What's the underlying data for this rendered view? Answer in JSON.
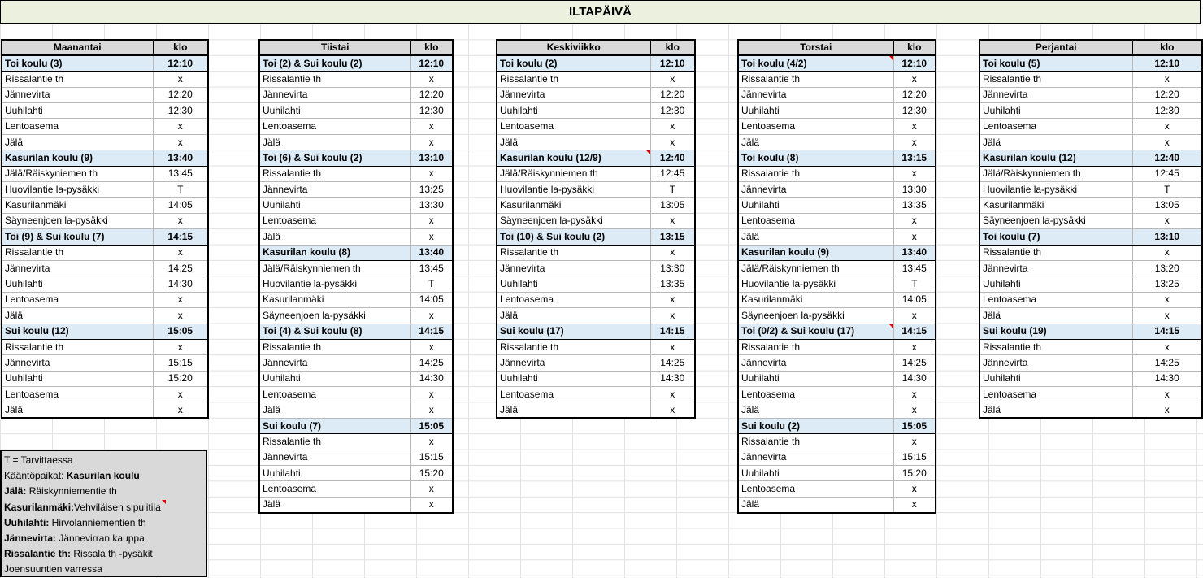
{
  "title": "ILTAPÄIVÄ",
  "header_time": "klo",
  "days": [
    {
      "name": "Maanantai",
      "blocks": [
        {
          "school": "Toi koulu (3)",
          "time": "12:10",
          "stops": [
            [
              "Rissalantie th",
              "x"
            ],
            [
              "Jännevirta",
              "12:20"
            ],
            [
              "Uuhilahti",
              "12:30"
            ],
            [
              "Lentoasema",
              "x"
            ],
            [
              "Jälä",
              "x"
            ]
          ]
        },
        {
          "school": "Kasurilan koulu (9)",
          "time": "13:40",
          "stops": [
            [
              "Jälä/Räiskyniemen th",
              "13:45"
            ],
            [
              "Huovilantie la-pysäkki",
              "T"
            ],
            [
              "Kasurilanmäki",
              "14:05"
            ],
            [
              "Säyneenjoen la-pysäkki",
              "x"
            ]
          ]
        },
        {
          "school": "Toi (9) & Sui koulu (7)",
          "time": "14:15",
          "stops": [
            [
              "Rissalantie th",
              "x"
            ],
            [
              "Jännevirta",
              "14:25"
            ],
            [
              "Uuhilahti",
              "14:30"
            ],
            [
              "Lentoasema",
              "x"
            ],
            [
              "Jälä",
              "x"
            ]
          ]
        },
        {
          "school": "Sui koulu (12)",
          "time": "15:05",
          "stops": [
            [
              "Rissalantie th",
              "x"
            ],
            [
              "Jännevirta",
              "15:15"
            ],
            [
              "Uuhilahti",
              "15:20"
            ],
            [
              "Lentoasema",
              "x"
            ],
            [
              "Jälä",
              "x"
            ]
          ]
        }
      ]
    },
    {
      "name": "Tiistai",
      "blocks": [
        {
          "school": "Toi (2) & Sui koulu (2)",
          "time": "12:10",
          "stops": [
            [
              "Rissalantie th",
              "x"
            ],
            [
              "Jännevirta",
              "12:20"
            ],
            [
              "Uuhilahti",
              "12:30"
            ],
            [
              "Lentoasema",
              "x"
            ],
            [
              "Jälä",
              "x"
            ]
          ]
        },
        {
          "school": "Toi (6) & Sui koulu (2)",
          "time": "13:10",
          "stops": [
            [
              "Rissalantie th",
              "x"
            ],
            [
              "Jännevirta",
              "13:25"
            ],
            [
              "Uuhilahti",
              "13:30"
            ],
            [
              "Lentoasema",
              "x"
            ],
            [
              "Jälä",
              "x"
            ]
          ]
        },
        {
          "school": "Kasurilan koulu (8)",
          "time": "13:40",
          "stops": [
            [
              "Jälä/Räiskynniemen th",
              "13:45"
            ],
            [
              "Huovilantie la-pysäkki",
              "T"
            ],
            [
              "Kasurilanmäki",
              "14:05"
            ],
            [
              "Säyneenjoen la-pysäkki",
              "x"
            ]
          ]
        },
        {
          "school": "Toi (4) & Sui koulu (8)",
          "time": "14:15",
          "stops": [
            [
              "Rissalantie th",
              "x"
            ],
            [
              "Jännevirta",
              "14:25"
            ],
            [
              "Uuhilahti",
              "14:30"
            ],
            [
              "Lentoasema",
              "x"
            ],
            [
              "Jälä",
              "x"
            ]
          ]
        },
        {
          "school": "Sui koulu (7)",
          "time": "15:05",
          "stops": [
            [
              "Rissalantie th",
              "x"
            ],
            [
              "Jännevirta",
              "15:15"
            ],
            [
              "Uuhilahti",
              "15:20"
            ],
            [
              "Lentoasema",
              "x"
            ],
            [
              "Jälä",
              "x"
            ]
          ]
        }
      ]
    },
    {
      "name": "Keskiviikko",
      "blocks": [
        {
          "school": "Toi koulu (2)",
          "time": "12:10",
          "stops": [
            [
              "Rissalantie th",
              "x"
            ],
            [
              "Jännevirta",
              "12:20"
            ],
            [
              "Uuhilahti",
              "12:30"
            ],
            [
              "Lentoasema",
              "x"
            ],
            [
              "Jälä",
              "x"
            ]
          ]
        },
        {
          "school": "Kasurilan koulu (12/9)",
          "time": "12:40",
          "flag": true,
          "stops": [
            [
              "Jälä/Räiskynniemen th",
              "12:45"
            ],
            [
              "Huovilantie la-pysäkki",
              "T"
            ],
            [
              "Kasurilanmäki",
              "13:05"
            ],
            [
              "Säyneenjoen la-pysäkki",
              "x"
            ]
          ]
        },
        {
          "school": "Toi (10) & Sui koulu (2)",
          "time": "13:15",
          "stops": [
            [
              "Rissalantie th",
              "x"
            ],
            [
              "Jännevirta",
              "13:30"
            ],
            [
              "Uuhilahti",
              "13:35"
            ],
            [
              "Lentoasema",
              "x"
            ],
            [
              "Jälä",
              "x"
            ]
          ]
        },
        {
          "school": "Sui koulu (17)",
          "time": "14:15",
          "stops": [
            [
              "Rissalantie th",
              "x"
            ],
            [
              "Jännevirta",
              "14:25"
            ],
            [
              "Uuhilahti",
              "14:30"
            ],
            [
              "Lentoasema",
              "x"
            ],
            [
              "Jälä",
              "x"
            ]
          ]
        }
      ]
    },
    {
      "name": "Torstai",
      "blocks": [
        {
          "school": "Toi koulu (4/2)",
          "time": "12:10",
          "flag": true,
          "stops": [
            [
              "Rissalantie th",
              "x"
            ],
            [
              "Jännevirta",
              "12:20"
            ],
            [
              "Uuhilahti",
              "12:30"
            ],
            [
              "Lentoasema",
              "x"
            ],
            [
              "Jälä",
              "x"
            ]
          ]
        },
        {
          "school": "Toi koulu (8)",
          "time": "13:15",
          "stops": [
            [
              "Rissalantie th",
              "x"
            ],
            [
              "Jännevirta",
              "13:30"
            ],
            [
              "Uuhilahti",
              "13:35"
            ],
            [
              "Lentoasema",
              "x"
            ],
            [
              "Jälä",
              "x"
            ]
          ]
        },
        {
          "school": "Kasurilan koulu (9)",
          "time": "13:40",
          "stops": [
            [
              "Jälä/Räiskynniemen th",
              "13:45"
            ],
            [
              "Huovilantie la-pysäkki",
              "T"
            ],
            [
              "Kasurilanmäki",
              "14:05"
            ],
            [
              "Säyneenjoen la-pysäkki",
              "x"
            ]
          ]
        },
        {
          "school": "Toi (0/2) & Sui koulu (17)",
          "time": "14:15",
          "flag": true,
          "stops": [
            [
              "Rissalantie th",
              "x"
            ],
            [
              "Jännevirta",
              "14:25"
            ],
            [
              "Uuhilahti",
              "14:30"
            ],
            [
              "Lentoasema",
              "x"
            ],
            [
              "Jälä",
              "x"
            ]
          ]
        },
        {
          "school": "Sui koulu (2)",
          "time": "15:05",
          "stops": [
            [
              "Rissalantie th",
              "x"
            ],
            [
              "Jännevirta",
              "15:15"
            ],
            [
              "Uuhilahti",
              "15:20"
            ],
            [
              "Lentoasema",
              "x"
            ],
            [
              "Jälä",
              "x"
            ]
          ]
        }
      ]
    },
    {
      "name": "Perjantai",
      "blocks": [
        {
          "school": "Toi koulu (5)",
          "time": "12:10",
          "stops": [
            [
              "Rissalantie th",
              "x"
            ],
            [
              "Jännevirta",
              "12:20"
            ],
            [
              "Uuhilahti",
              "12:30"
            ],
            [
              "Lentoasema",
              "x"
            ],
            [
              "Jälä",
              "x"
            ]
          ]
        },
        {
          "school": "Kasurilan koulu (12)",
          "time": "12:40",
          "stops": [
            [
              "Jälä/Räiskynniemen th",
              "12:45"
            ],
            [
              "Huovilantie la-pysäkki",
              "T"
            ],
            [
              "Kasurilanmäki",
              "13:05"
            ],
            [
              "Säyneenjoen la-pysäkki",
              "x"
            ]
          ]
        },
        {
          "school": "Toi koulu (7)",
          "time": "13:10",
          "stops": [
            [
              "Rissalantie th",
              "x"
            ],
            [
              "Jännevirta",
              "13:20"
            ],
            [
              "Uuhilahti",
              "13:25"
            ],
            [
              "Lentoasema",
              "x"
            ],
            [
              "Jälä",
              "x"
            ]
          ]
        },
        {
          "school": "Sui koulu (19)",
          "time": "14:15",
          "stops": [
            [
              "Rissalantie th",
              "x"
            ],
            [
              "Jännevirta",
              "14:25"
            ],
            [
              "Uuhilahti",
              "14:30"
            ],
            [
              "Lentoasema",
              "x"
            ],
            [
              "Jälä",
              "x"
            ]
          ]
        }
      ]
    }
  ],
  "legend": [
    {
      "bold": "",
      "text": "T = Tarvittaessa"
    },
    {
      "bold": "",
      "text": "Kääntöpaikat: ",
      "bold_after": "Kasurilan koulu"
    },
    {
      "bold": "Jälä:",
      "text": " Räiskynniementie th"
    },
    {
      "bold": "Kasurilanmäki:",
      "text": " Vehviläisen sipulitila",
      "flag": true
    },
    {
      "bold": "Uuhilahti:",
      "text": " Hirvolanniementien th"
    },
    {
      "bold": "Jännevirta:",
      "text": " Jännevirran kauppa"
    },
    {
      "bold": "Rissalantie th:",
      "text": " Rissala th -pysäkit"
    },
    {
      "bold": "",
      "text": "Joensuuntien varressa"
    }
  ]
}
